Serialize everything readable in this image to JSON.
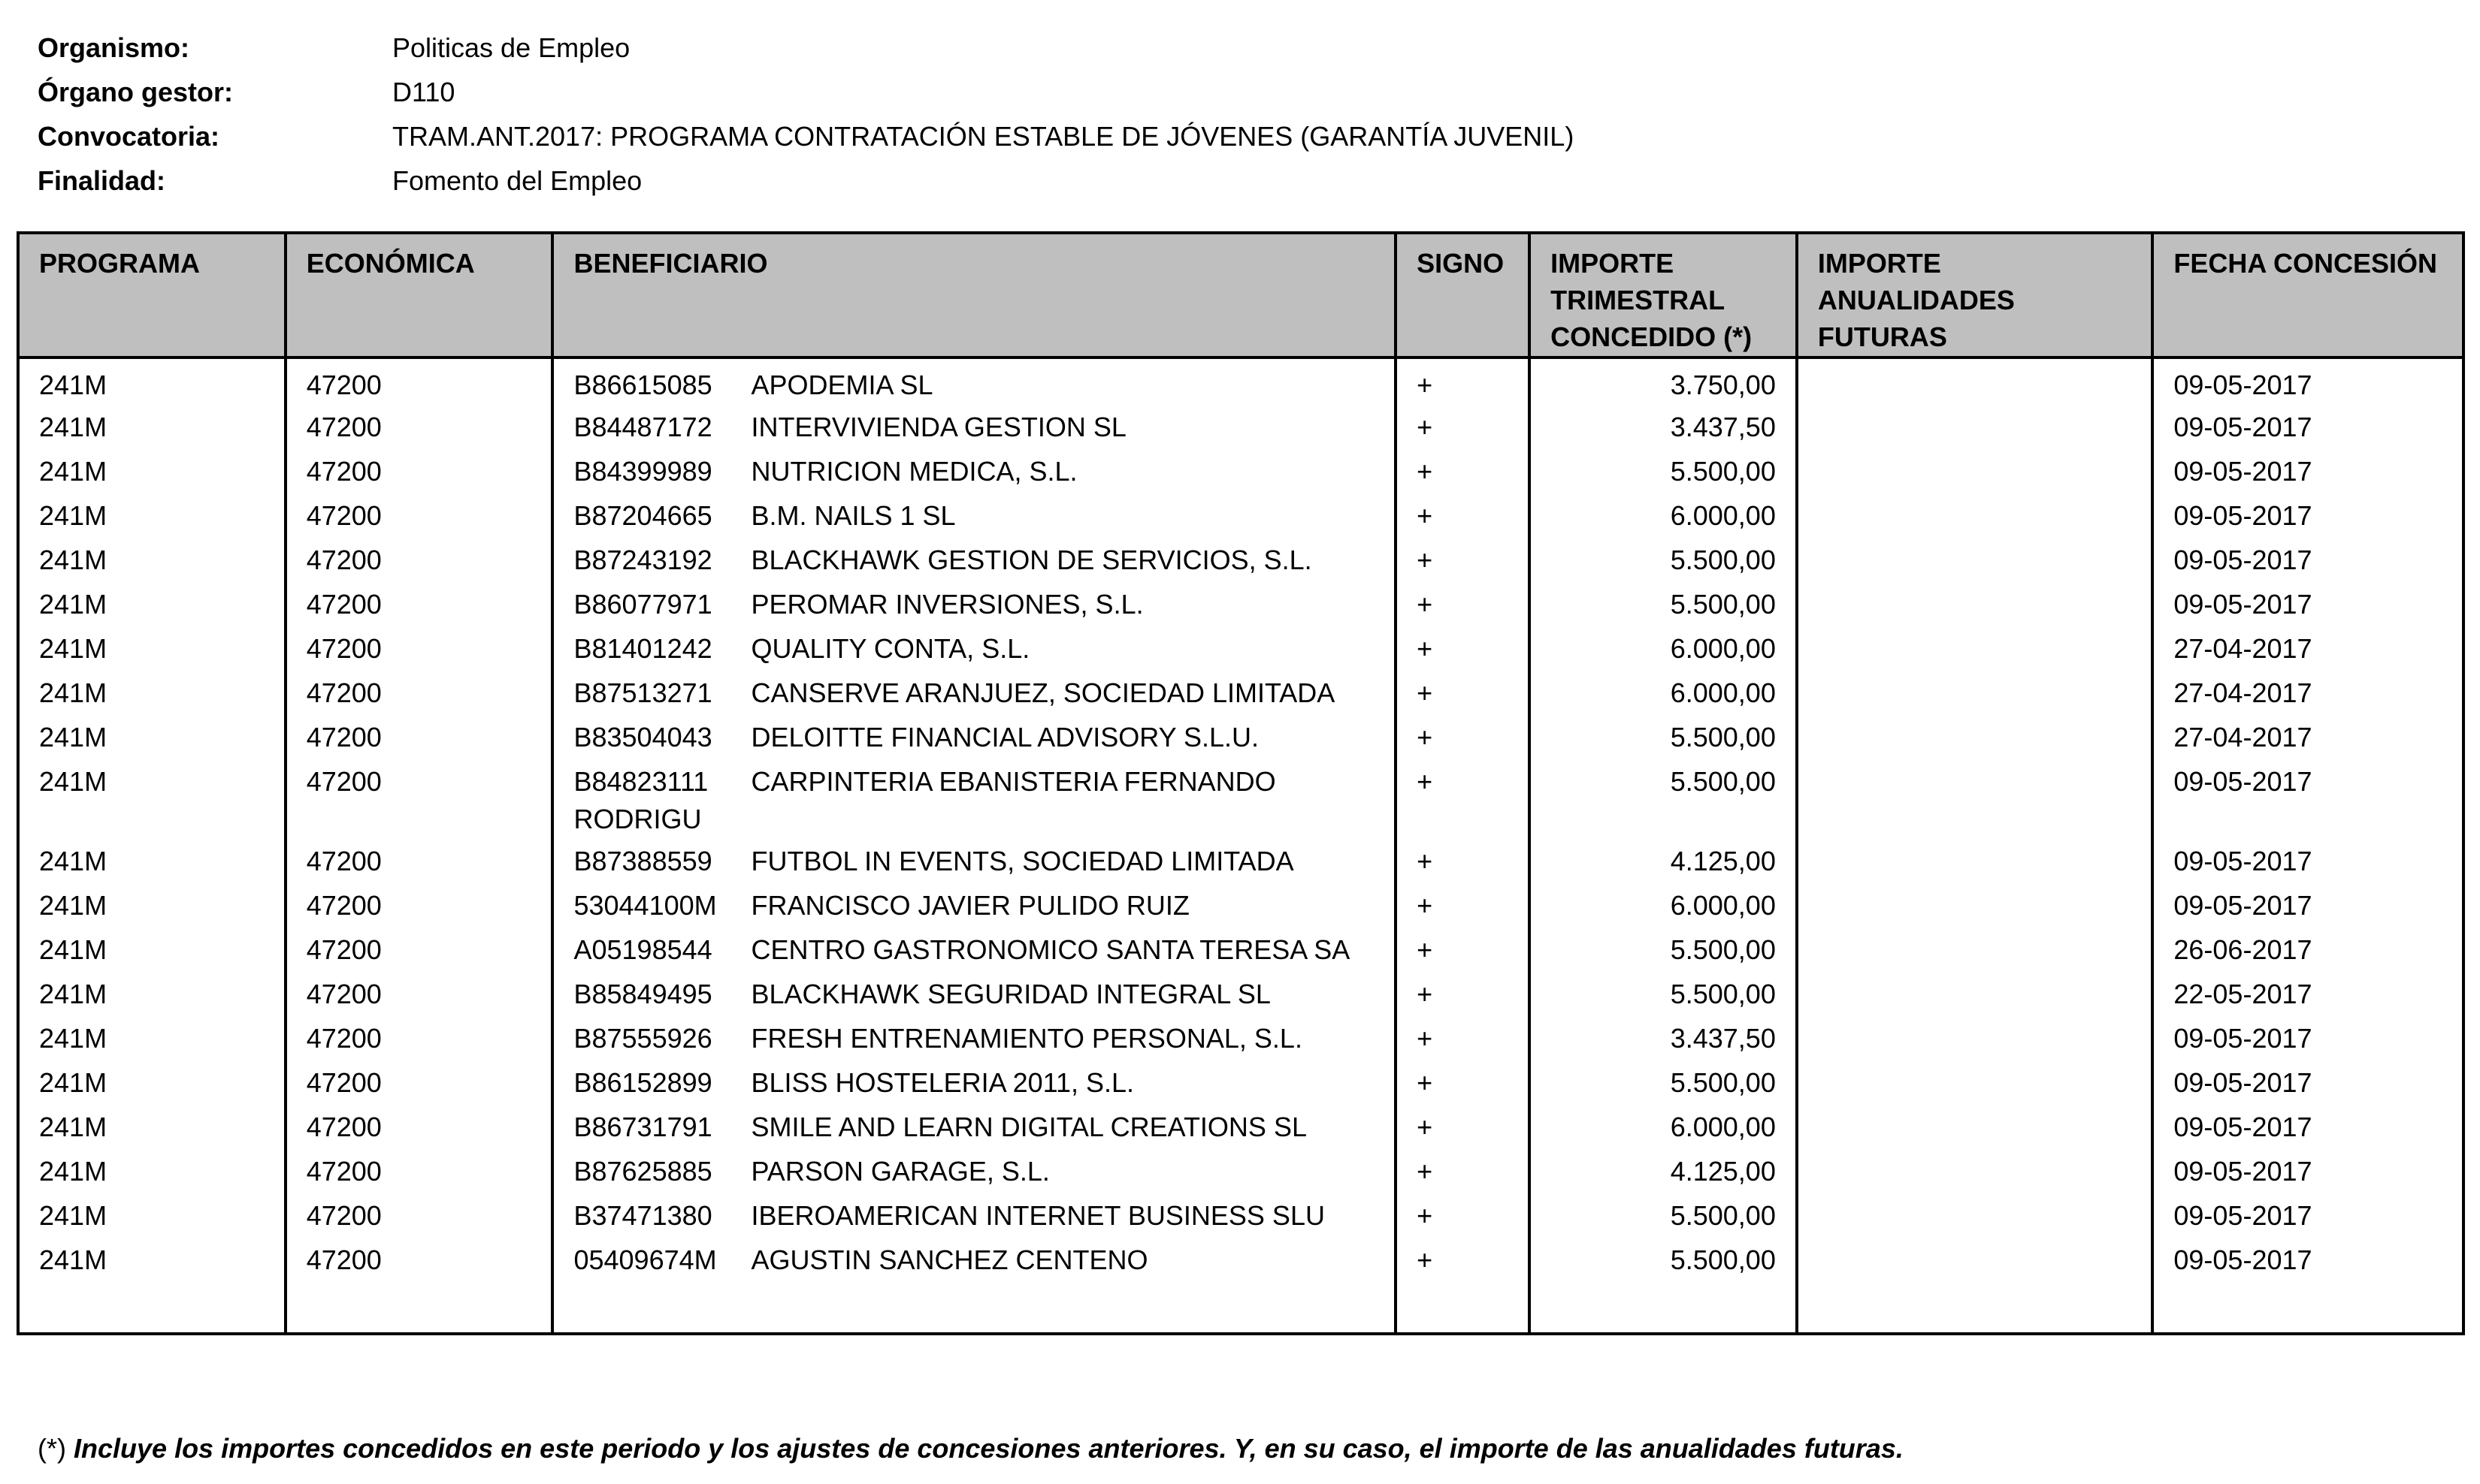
{
  "meta": [
    {
      "label": "Organismo:",
      "value": "Politicas de Empleo"
    },
    {
      "label": "Órgano gestor:",
      "value": "D110"
    },
    {
      "label": "Convocatoria:",
      "value": "TRAM.ANT.2017: PROGRAMA CONTRATACIÓN ESTABLE DE JÓVENES (GARANTÍA JUVENIL)"
    },
    {
      "label": "Finalidad:",
      "value": "Fomento del Empleo"
    }
  ],
  "columns": [
    "PROGRAMA",
    "ECONÓMICA",
    "BENEFICIARIO",
    "SIGNO",
    "IMPORTE TRIMESTRAL CONCEDIDO (*)",
    "IMPORTE ANUALIDADES FUTURAS",
    "FECHA CONCESIÓN"
  ],
  "rows": [
    {
      "programa": "241M",
      "economica": "47200",
      "nif": "B86615085",
      "nombre": "APODEMIA SL",
      "signo": "+",
      "importe": "3.750,00",
      "futuras": "",
      "fecha": "09-05-2017"
    },
    {
      "programa": "241M",
      "economica": "47200",
      "nif": "B84487172",
      "nombre": "INTERVIVIENDA GESTION SL",
      "signo": "+",
      "importe": "3.437,50",
      "futuras": "",
      "fecha": "09-05-2017"
    },
    {
      "programa": "241M",
      "economica": "47200",
      "nif": "B84399989",
      "nombre": "NUTRICION MEDICA, S.L.",
      "signo": "+",
      "importe": "5.500,00",
      "futuras": "",
      "fecha": "09-05-2017"
    },
    {
      "programa": "241M",
      "economica": "47200",
      "nif": "B87204665",
      "nombre": "B.M. NAILS 1 SL",
      "signo": "+",
      "importe": "6.000,00",
      "futuras": "",
      "fecha": "09-05-2017"
    },
    {
      "programa": "241M",
      "economica": "47200",
      "nif": "B87243192",
      "nombre": "BLACKHAWK GESTION DE SERVICIOS, S.L.",
      "signo": "+",
      "importe": "5.500,00",
      "futuras": "",
      "fecha": "09-05-2017"
    },
    {
      "programa": "241M",
      "economica": "47200",
      "nif": "B86077971",
      "nombre": "PEROMAR INVERSIONES, S.L.",
      "signo": "+",
      "importe": "5.500,00",
      "futuras": "",
      "fecha": "09-05-2017"
    },
    {
      "programa": "241M",
      "economica": "47200",
      "nif": "B81401242",
      "nombre": "QUALITY CONTA, S.L.",
      "signo": "+",
      "importe": "6.000,00",
      "futuras": "",
      "fecha": "27-04-2017"
    },
    {
      "programa": "241M",
      "economica": "47200",
      "nif": "B87513271",
      "nombre": "CANSERVE ARANJUEZ, SOCIEDAD LIMITADA",
      "signo": "+",
      "importe": "6.000,00",
      "futuras": "",
      "fecha": "27-04-2017"
    },
    {
      "programa": "241M",
      "economica": "47200",
      "nif": "B83504043",
      "nombre": "DELOITTE FINANCIAL ADVISORY S.L.U.",
      "signo": "+",
      "importe": "5.500,00",
      "futuras": "",
      "fecha": "27-04-2017"
    },
    {
      "programa": "241M",
      "economica": "47200",
      "nif": "B84823111",
      "nombre": "CARPINTERIA EBANISTERIA FERNANDO RODRIGU",
      "signo": "+",
      "importe": "5.500,00",
      "futuras": "",
      "fecha": "09-05-2017"
    },
    {
      "programa": "241M",
      "economica": "47200",
      "nif": "B87388559",
      "nombre": "FUTBOL IN EVENTS, SOCIEDAD LIMITADA",
      "signo": "+",
      "importe": "4.125,00",
      "futuras": "",
      "fecha": "09-05-2017"
    },
    {
      "programa": "241M",
      "economica": "47200",
      "nif": "53044100M",
      "nombre": "FRANCISCO JAVIER PULIDO RUIZ",
      "signo": "+",
      "importe": "6.000,00",
      "futuras": "",
      "fecha": "09-05-2017"
    },
    {
      "programa": "241M",
      "economica": "47200",
      "nif": "A05198544",
      "nombre": "CENTRO GASTRONOMICO SANTA TERESA SA",
      "signo": "+",
      "importe": "5.500,00",
      "futuras": "",
      "fecha": "26-06-2017"
    },
    {
      "programa": "241M",
      "economica": "47200",
      "nif": "B85849495",
      "nombre": "BLACKHAWK SEGURIDAD INTEGRAL SL",
      "signo": "+",
      "importe": "5.500,00",
      "futuras": "",
      "fecha": "22-05-2017"
    },
    {
      "programa": "241M",
      "economica": "47200",
      "nif": "B87555926",
      "nombre": "FRESH ENTRENAMIENTO PERSONAL, S.L.",
      "signo": "+",
      "importe": "3.437,50",
      "futuras": "",
      "fecha": "09-05-2017"
    },
    {
      "programa": "241M",
      "economica": "47200",
      "nif": "B86152899",
      "nombre": "BLISS HOSTELERIA 2011, S.L.",
      "signo": "+",
      "importe": "5.500,00",
      "futuras": "",
      "fecha": "09-05-2017"
    },
    {
      "programa": "241M",
      "economica": "47200",
      "nif": "B86731791",
      "nombre": "SMILE AND LEARN DIGITAL CREATIONS SL",
      "signo": "+",
      "importe": "6.000,00",
      "futuras": "",
      "fecha": "09-05-2017"
    },
    {
      "programa": "241M",
      "economica": "47200",
      "nif": "B87625885",
      "nombre": "PARSON GARAGE, S.L.",
      "signo": "+",
      "importe": "4.125,00",
      "futuras": "",
      "fecha": "09-05-2017"
    },
    {
      "programa": "241M",
      "economica": "47200",
      "nif": "B37471380",
      "nombre": "IBEROAMERICAN INTERNET BUSINESS SLU",
      "signo": "+",
      "importe": "5.500,00",
      "futuras": "",
      "fecha": "09-05-2017"
    },
    {
      "programa": "241M",
      "economica": "47200",
      "nif": "05409674M",
      "nombre": "AGUSTIN SANCHEZ CENTENO",
      "signo": "+",
      "importe": "5.500,00",
      "futuras": "",
      "fecha": "09-05-2017"
    }
  ],
  "footnote": {
    "mark": "(*)",
    "text": "Incluye los importes concedidos en este periodo y los ajustes de concesiones anteriores. Y, en su caso, el importe de las anualidades futuras."
  }
}
